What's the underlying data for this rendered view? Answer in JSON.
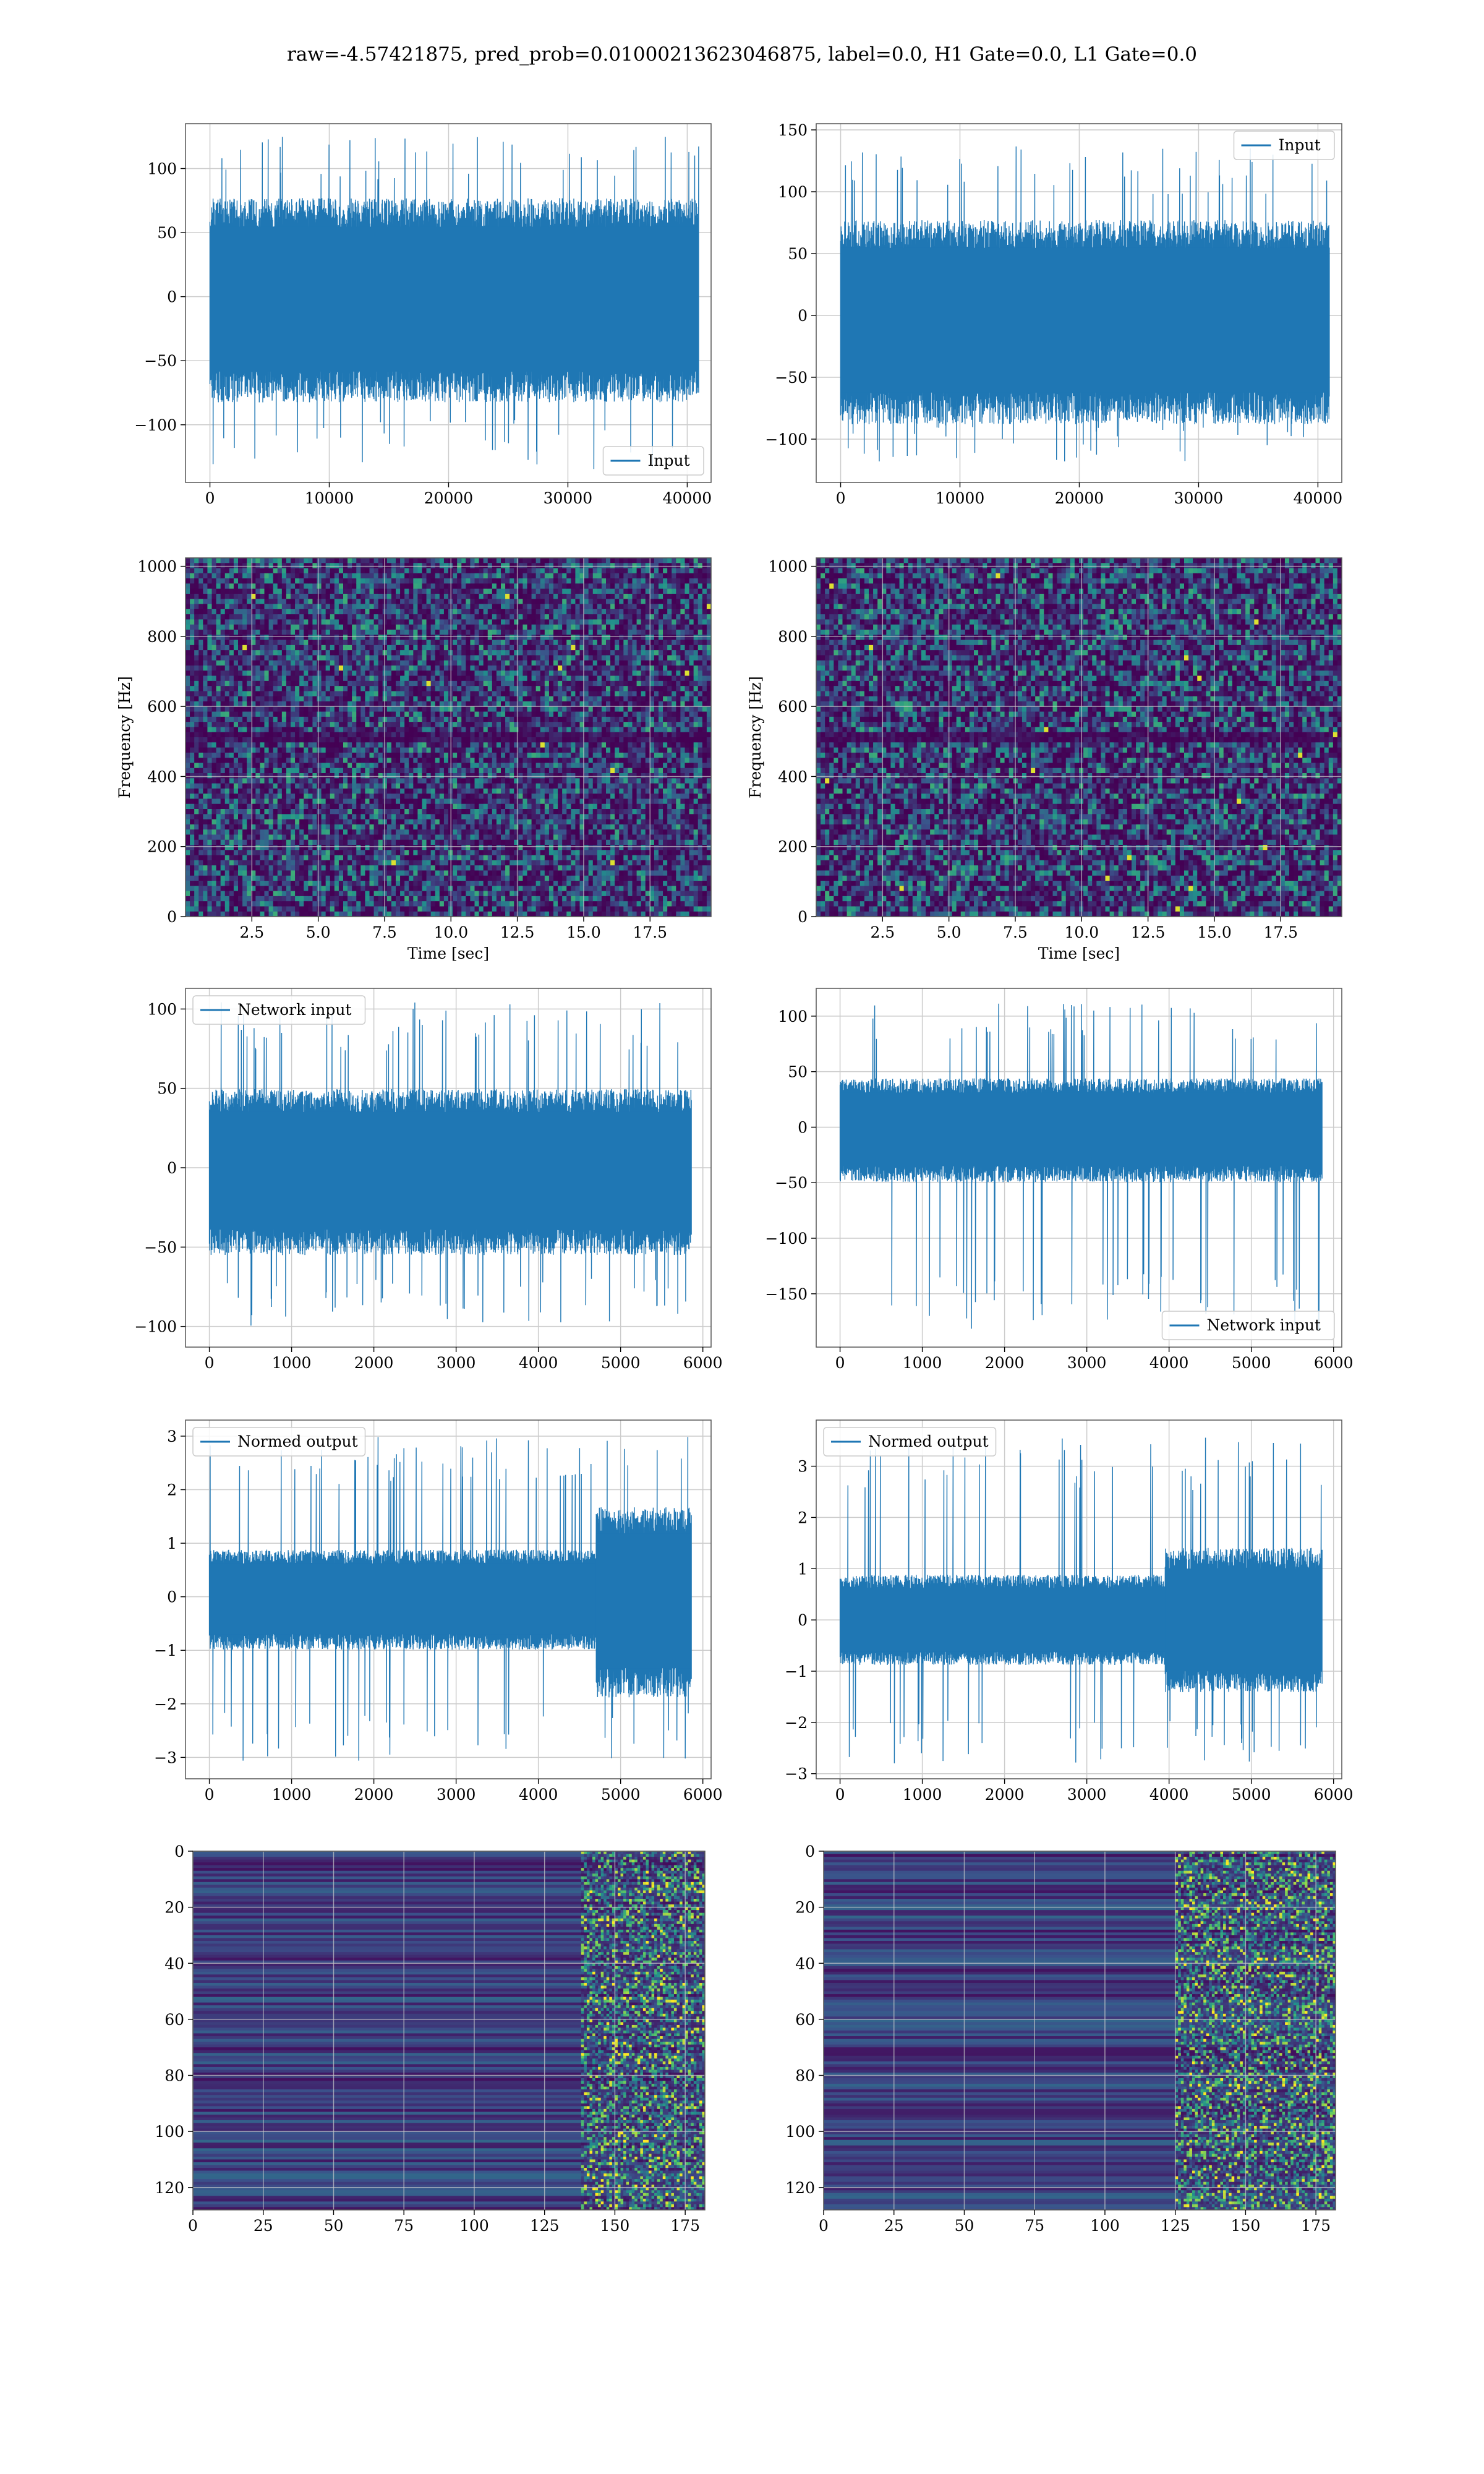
{
  "suptitle": "raw=-4.57421875, pred_prob=0.01000213623046875, label=0.0, H1 Gate=0.0, L1 Gate=0.0",
  "colors": {
    "line": "#1f77b4",
    "viridis_dark": "#440154",
    "viridis_mid": "#31688e",
    "viridis_teal": "#35b779",
    "viridis_yellow": "#fde725",
    "grid": "#cccccc"
  },
  "chart_data": [
    {
      "id": "ts_input_left",
      "type": "line",
      "kind": "noise_fill",
      "xlim": [
        -2048,
        42000
      ],
      "ylim": [
        -145,
        135
      ],
      "xticks": [
        0,
        10000,
        20000,
        30000,
        40000
      ],
      "yticks": [
        -100,
        -50,
        0,
        50,
        100
      ],
      "legend": "bottom-right",
      "series": [
        {
          "name": "Input",
          "x_end": 40960,
          "body": [
            -75,
            70
          ],
          "spikes": [
            -135,
            125
          ]
        }
      ]
    },
    {
      "id": "ts_input_right",
      "type": "line",
      "kind": "noise_fill",
      "xlim": [
        -2048,
        42000
      ],
      "ylim": [
        -135,
        155
      ],
      "xticks": [
        0,
        10000,
        20000,
        30000,
        40000
      ],
      "yticks": [
        -100,
        -50,
        0,
        50,
        100,
        150
      ],
      "legend": "top-right",
      "series": [
        {
          "name": "Input",
          "x_end": 40960,
          "body": [
            -80,
            70
          ],
          "spikes": [
            -120,
            140
          ]
        }
      ]
    },
    {
      "id": "spec_left",
      "type": "heatmap",
      "kind": "spectrogram",
      "xlabel": "Time [sec]",
      "ylabel": "Frequency [Hz]",
      "xlim": [
        0,
        19.8
      ],
      "ylim": [
        0,
        1024
      ],
      "xticks": [
        2.5,
        5.0,
        7.5,
        10.0,
        12.5,
        15.0,
        17.5
      ],
      "xtick_labels": [
        "2.5",
        "5.0",
        "7.5",
        "10.0",
        "12.5",
        "15.0",
        "17.5"
      ],
      "yticks": [
        0,
        200,
        400,
        600,
        800,
        1000
      ]
    },
    {
      "id": "spec_right",
      "type": "heatmap",
      "kind": "spectrogram",
      "xlabel": "Time [sec]",
      "ylabel": "Frequency [Hz]",
      "xlim": [
        0,
        19.8
      ],
      "ylim": [
        0,
        1024
      ],
      "xticks": [
        2.5,
        5.0,
        7.5,
        10.0,
        12.5,
        15.0,
        17.5
      ],
      "xtick_labels": [
        "2.5",
        "5.0",
        "7.5",
        "10.0",
        "12.5",
        "15.0",
        "17.5"
      ],
      "yticks": [
        0,
        200,
        400,
        600,
        800,
        1000
      ]
    },
    {
      "id": "ts_net_left",
      "type": "line",
      "kind": "noise_fill",
      "xlim": [
        -290,
        6100
      ],
      "ylim": [
        -113,
        113
      ],
      "xticks": [
        0,
        1000,
        2000,
        3000,
        4000,
        5000,
        6000
      ],
      "yticks": [
        -100,
        -50,
        0,
        50,
        100
      ],
      "legend": "top-left",
      "series": [
        {
          "name": "Network input",
          "x_end": 5860,
          "body": [
            -50,
            45
          ],
          "spikes": [
            -100,
            105
          ]
        }
      ]
    },
    {
      "id": "ts_net_right",
      "type": "line",
      "kind": "noise_fill",
      "xlim": [
        -290,
        6100
      ],
      "ylim": [
        -198,
        125
      ],
      "xticks": [
        0,
        1000,
        2000,
        3000,
        4000,
        5000,
        6000
      ],
      "yticks": [
        -150,
        -100,
        -50,
        0,
        50,
        100
      ],
      "legend": "bottom-right",
      "series": [
        {
          "name": "Network input",
          "x_end": 5860,
          "body": [
            -45,
            40
          ],
          "spikes": [
            -185,
            112
          ]
        }
      ]
    },
    {
      "id": "ts_norm_left",
      "type": "line",
      "kind": "noise_fill",
      "xlim": [
        -290,
        6100
      ],
      "ylim": [
        -3.4,
        3.3
      ],
      "xticks": [
        0,
        1000,
        2000,
        3000,
        4000,
        5000,
        6000
      ],
      "yticks": [
        -3,
        -2,
        -1,
        0,
        1,
        2,
        3
      ],
      "legend": "top-left",
      "burst": [
        4700,
        5860,
        1.9
      ],
      "series": [
        {
          "name": "Normed output",
          "x_end": 5860,
          "body": [
            -0.9,
            0.8
          ],
          "spikes": [
            -3.1,
            3.0
          ]
        }
      ]
    },
    {
      "id": "ts_norm_right",
      "type": "line",
      "kind": "noise_fill",
      "xlim": [
        -290,
        6100
      ],
      "ylim": [
        -3.1,
        3.9
      ],
      "xticks": [
        0,
        1000,
        2000,
        3000,
        4000,
        5000,
        6000
      ],
      "yticks": [
        -3,
        -2,
        -1,
        0,
        1,
        2,
        3
      ],
      "legend": "top-left",
      "burst": [
        3950,
        5860,
        1.6
      ],
      "series": [
        {
          "name": "Normed output",
          "x_end": 5860,
          "body": [
            -0.8,
            0.8
          ],
          "spikes": [
            -2.8,
            3.6
          ]
        }
      ]
    },
    {
      "id": "feat_left",
      "type": "heatmap",
      "kind": "features",
      "xlim": [
        0,
        182
      ],
      "ylim": [
        128,
        0
      ],
      "xticks": [
        0,
        25,
        50,
        75,
        100,
        125,
        150,
        175
      ],
      "yticks": [
        0,
        20,
        40,
        60,
        80,
        100,
        120
      ],
      "active_from": 138
    },
    {
      "id": "feat_right",
      "type": "heatmap",
      "kind": "features",
      "xlim": [
        0,
        182
      ],
      "ylim": [
        128,
        0
      ],
      "xticks": [
        0,
        25,
        50,
        75,
        100,
        125,
        150,
        175
      ],
      "yticks": [
        0,
        20,
        40,
        60,
        80,
        100,
        120
      ],
      "active_from": 125
    }
  ]
}
